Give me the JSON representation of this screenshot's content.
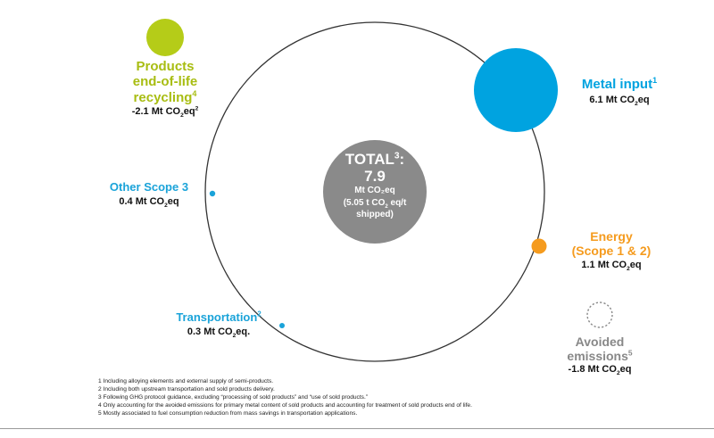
{
  "colors": {
    "ring": "#333333",
    "total": "#8a8a8a",
    "recycling": "#b5cc18",
    "metal": "#00a3e0",
    "scope3": "#1aa3d9",
    "transport": "#1aa3d9",
    "energy": "#f59b1e",
    "avoided": "#888888"
  },
  "total": {
    "title": "TOTAL",
    "title_sup": "3",
    "title_colon": ":",
    "value": "7.9",
    "unit": "Mt CO₂eq",
    "per_shipped_a": "(5.05 t CO",
    "per_shipped_sub": "2",
    "per_shipped_b": " eq/t",
    "per_shipped_c": "shipped)"
  },
  "recycling": {
    "line1": "Products",
    "line2": "end-of-life",
    "line3": "recycling",
    "sup": "4",
    "value_a": "-2.1 Mt CO",
    "value_sub": "2",
    "value_b": "eq",
    "value_sup": "2"
  },
  "metal": {
    "title": "Metal input",
    "sup": "1",
    "value_a": "6.1 Mt CO",
    "value_sub": "2",
    "value_b": "eq"
  },
  "scope3": {
    "title": "Other Scope 3",
    "value_a": "0.4 Mt CO",
    "value_sub": "2",
    "value_b": "eq"
  },
  "energy": {
    "line1": "Energy",
    "line2": "(Scope 1 & 2)",
    "value_a": "1.1 Mt CO",
    "value_sub": "2",
    "value_b": "eq"
  },
  "transport": {
    "title": "Transportation",
    "sup": "2",
    "value_a": "0.3 Mt CO",
    "value_sub": "2",
    "value_b": "eq."
  },
  "avoided": {
    "line1": "Avoided",
    "line2": "emissions",
    "sup": "5",
    "value_a": "-1.8 Mt CO",
    "value_sub": "2",
    "value_b": "eq"
  },
  "footnotes": [
    "1 Including alloying elements and external supply of semi-products.",
    "2 Including both upstream transportation and sold products delivery.",
    "3 Following GHG protocol guidance, excluding “processing of sold products” and “use of sold products.”",
    "4 Only accounting for the avoided emissions for primary metal content of sold products and accounting for treatment of sold products end of life.",
    "5 Mostly associated to fuel consumption reduction from mass savings in transportation applications."
  ]
}
